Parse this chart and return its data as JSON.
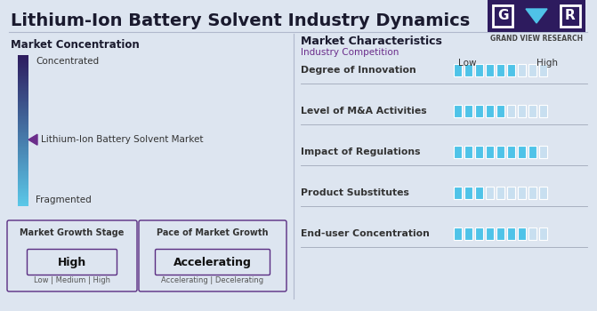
{
  "title": "Lithium-Ion Battery Solvent Industry Dynamics",
  "bg_color": "#dde5f0",
  "title_color": "#1a1a2e",
  "left_section_title": "Market Concentration",
  "gradient_top_color": "#2d1b5e",
  "gradient_bottom_color": "#5bc8e8",
  "concentrated_label": "Concentrated",
  "fragmented_label": "Fragmented",
  "market_label": "Lithium-Ion Battery Solvent Market",
  "arrow_color": "#6b2d8b",
  "box1_title": "Market Growth Stage",
  "box1_value": "High",
  "box1_options": "Low | Medium | High",
  "box2_title": "Pace of Market Growth",
  "box2_value": "Accelerating",
  "box2_options": "Accelerating | Decelerating",
  "right_section_title": "Market Characteristics",
  "right_subtitle": "Industry Competition",
  "low_label": "Low",
  "high_label": "High",
  "characteristics": [
    {
      "label": "Degree of Innovation",
      "filled": 6,
      "total": 9
    },
    {
      "label": "Level of M&A Activities",
      "filled": 5,
      "total": 9
    },
    {
      "label": "Impact of Regulations",
      "filled": 8,
      "total": 9
    },
    {
      "label": "Product Substitutes",
      "filled": 3,
      "total": 9
    },
    {
      "label": "End-user Concentration",
      "filled": 7,
      "total": 9
    }
  ],
  "filled_color": "#4fc3e8",
  "empty_color": "#c8dff0",
  "separator_color": "#a0a8b8",
  "box_border_color": "#5a2d82",
  "box_bg_color": "#dde5f0",
  "right_title_color": "#1a1a2e",
  "right_subtitle_color": "#6b2d8b",
  "char_label_color": "#333333",
  "logo_bg_color": "#2d1b5e",
  "logo_text_color": "#ffffff",
  "logo_arrow_color": "#4fc3e8",
  "gvr_label_color": "#444444",
  "divider_color": "#b0b8cc"
}
